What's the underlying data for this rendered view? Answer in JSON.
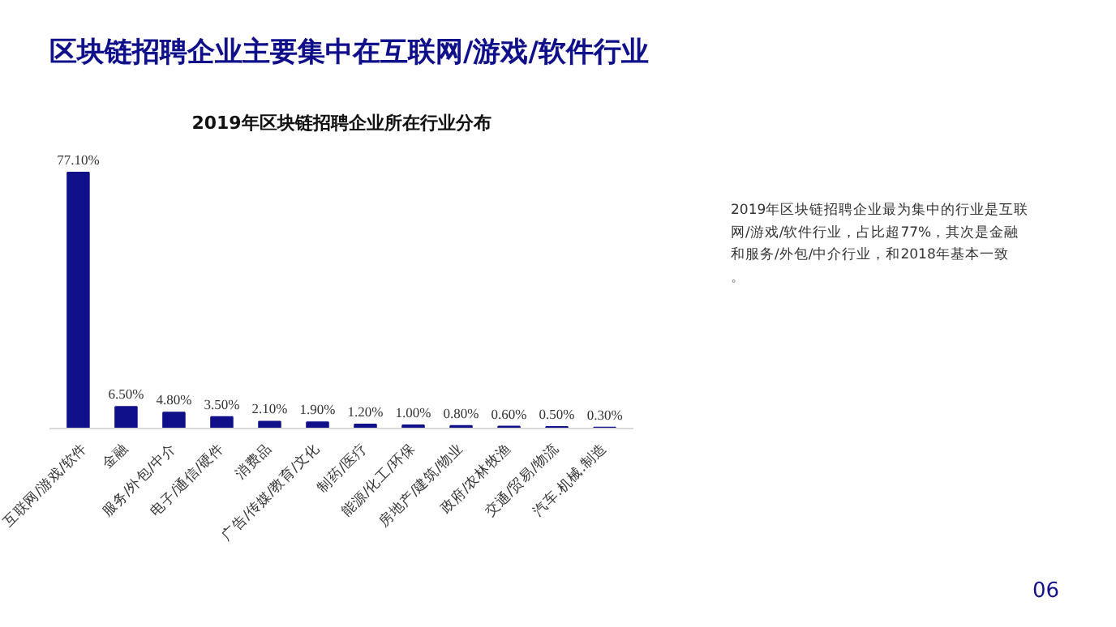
{
  "chart_data": {
    "type": "bar",
    "title": "区块链招聘企业主要集中在互联网/游戏/软件行业",
    "subtitle": "2019年区块链招聘企业所在行业分布",
    "categories": [
      "互联网/游戏/软件",
      "金融",
      "服务/外包/中介",
      "电子/通信/硬件",
      "消费品",
      "广告/传媒/教育/文化",
      "制药/医疗",
      "能源/化工/环保",
      "房地产/建筑/物业",
      "政府/农林牧渔",
      "交通/贸易/物流",
      "汽车.机械.制造"
    ],
    "values": [
      77.1,
      6.5,
      4.8,
      3.5,
      2.1,
      1.9,
      1.2,
      1.0,
      0.8,
      0.6,
      0.5,
      0.3
    ],
    "value_labels": [
      "77.10%",
      "6.50%",
      "4.80%",
      "3.50%",
      "2.10%",
      "1.90%",
      "1.20%",
      "1.00%",
      "0.80%",
      "0.60%",
      "0.50%",
      "0.30%"
    ],
    "color": "#10108a",
    "grid": false,
    "annotations": [
      "2019年区块链招聘企业最为集中的行业是互联网/游戏/软件行业，占比超77%，其次是金融和服务/外包/中介行业，和2018年基本一致。",
      "06"
    ]
  }
}
